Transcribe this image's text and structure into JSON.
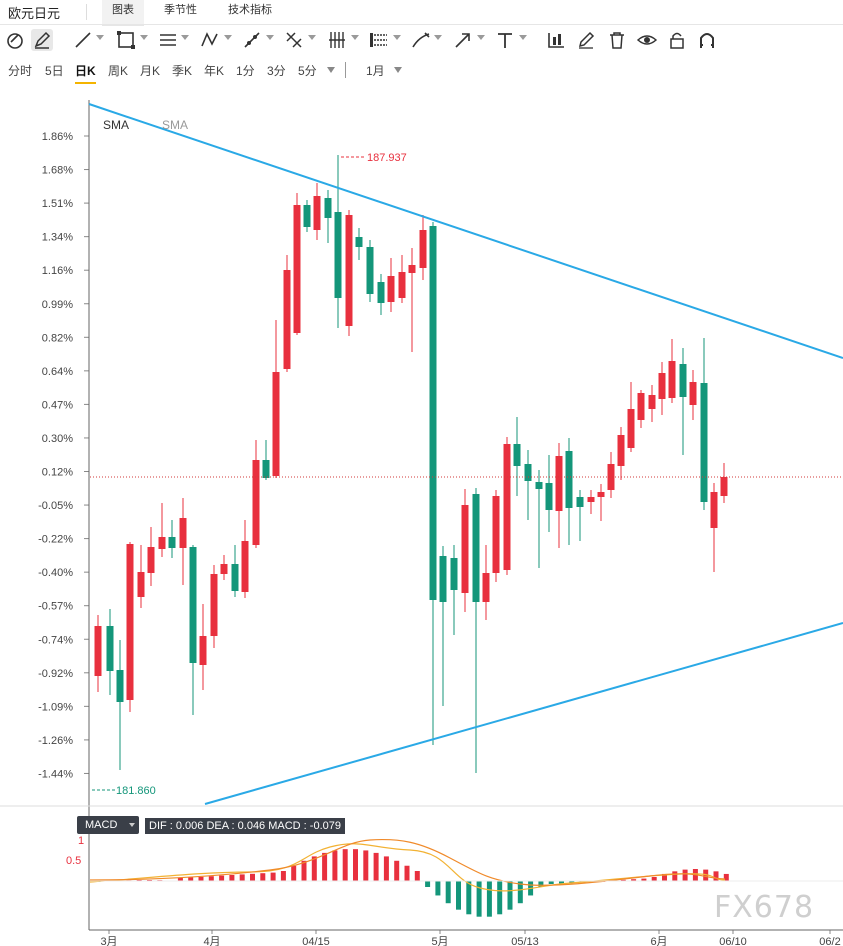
{
  "app": {
    "title": "欧元日元"
  },
  "tabs": [
    {
      "label": "图表",
      "active": true
    },
    {
      "label": "季节性",
      "active": false
    },
    {
      "label": "技术指标",
      "active": false
    }
  ],
  "toolbar": {
    "icons": [
      "magnet-icon",
      "pencil-icon",
      "line-tool-icon",
      "rectangle-tool-icon",
      "parallel-channel-icon",
      "pattern-tool-icon",
      "ray-tool-icon",
      "fib-tool-icon",
      "gann-tool-icon",
      "measure-tool-icon",
      "brush-tool-icon",
      "arrow-tool-icon",
      "text-tool-icon",
      "chart-type-icon",
      "edit-icon",
      "trash-icon",
      "eye-icon",
      "lock-icon",
      "magnet-snap-icon"
    ]
  },
  "periods": {
    "items": [
      "分时",
      "5日",
      "日K",
      "周K",
      "月K",
      "季K",
      "年K",
      "1分",
      "3分",
      "5分"
    ],
    "active": "日K",
    "range": "1月"
  },
  "indicator": {
    "name": "SMA",
    "second": "SMA"
  },
  "macd": {
    "label": "MACD",
    "values_text": "DIF : 0.006  DEA : 0.046  MACD : -0.079",
    "axis": [
      "1",
      "0.5"
    ]
  },
  "chart_data": {
    "type": "candlestick",
    "y_axis_percent_ticks": [
      "1.86%",
      "1.68%",
      "1.51%",
      "1.34%",
      "1.16%",
      "0.99%",
      "0.82%",
      "0.64%",
      "0.47%",
      "0.30%",
      "0.12%",
      "-0.05%",
      "-0.22%",
      "-0.40%",
      "-0.57%",
      "-0.74%",
      "-0.92%",
      "-1.09%",
      "-1.26%",
      "-1.44%"
    ],
    "x_axis_labels": [
      "3月",
      "4月",
      "04/15",
      "5月",
      "05/13",
      "6月",
      "06/10",
      "06/2"
    ],
    "high_label": "187.937",
    "low_label": "181.860",
    "colors": {
      "up": "#e8303e",
      "down": "#14967a",
      "trendline": "#2aa9e6"
    }
  },
  "watermark": "FX678"
}
